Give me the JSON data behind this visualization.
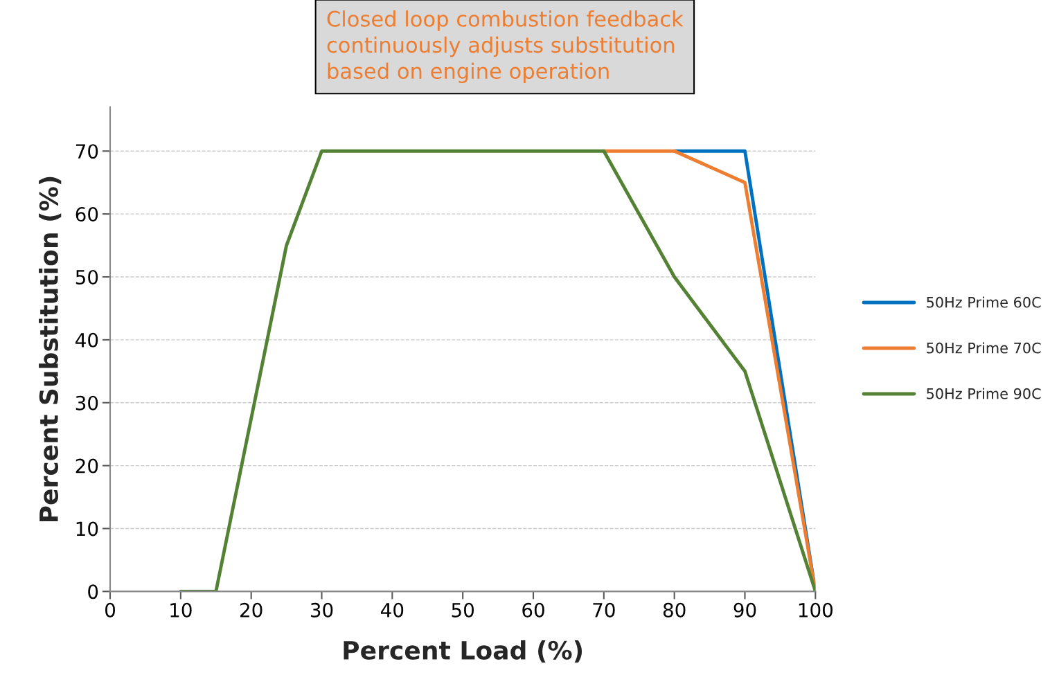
{
  "chart_data": {
    "type": "line",
    "xlabel": "Percent Load (%)",
    "ylabel": "Percent Substitution (%)",
    "annotations": [
      "Closed loop combustion feedback\ncontinuously adjusts substitution\nbased on engine operation"
    ],
    "series": [
      {
        "name": "50Hz Prime 60C",
        "color": "#0070c0",
        "x": [
          80,
          90,
          100
        ],
        "values": [
          70,
          70,
          0
        ]
      },
      {
        "name": "50Hz Prime 70C",
        "color": "#ed7d31",
        "x": [
          70,
          80,
          90,
          100
        ],
        "values": [
          70,
          70,
          65,
          0
        ]
      },
      {
        "name": "50Hz Prime 90C",
        "color": "#548235",
        "x": [
          10,
          15,
          25,
          30,
          70,
          80,
          90,
          100
        ],
        "values": [
          0,
          0,
          55,
          70,
          70,
          50,
          35,
          0
        ]
      }
    ],
    "xlim": [
      0,
      100
    ],
    "xticks": [
      0,
      10,
      20,
      30,
      40,
      50,
      60,
      70,
      80,
      90,
      100
    ],
    "ylim": [
      0,
      77
    ],
    "yticks": [
      0,
      10,
      20,
      30,
      40,
      50,
      60,
      70
    ],
    "grid": "y",
    "legend": "right",
    "marker": "none",
    "line_style": "solid"
  }
}
